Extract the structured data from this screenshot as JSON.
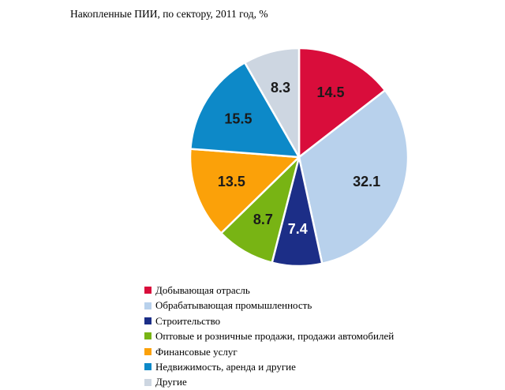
{
  "chart_data": {
    "type": "pie",
    "title": "Накопленные ПИИ, по сектору, 2011 год, %",
    "start": "12 o'clock, clockwise",
    "slices": [
      {
        "label": "Добывающая отрасль",
        "value": 14.5,
        "color": "#d90d3b",
        "text_color": "#1a1a1a"
      },
      {
        "label": "Обрабатывающая промышленность",
        "value": 32.1,
        "color": "#b8d1ec",
        "text_color": "#1a1a1a"
      },
      {
        "label": "Строительство",
        "value": 7.4,
        "color": "#1c2e87",
        "text_color": "#ffffff"
      },
      {
        "label": "Оптовые и розничные продажи, продажи автомобилей",
        "value": 8.7,
        "color": "#78b414",
        "text_color": "#1a1a1a"
      },
      {
        "label": "Финансовые услуг",
        "value": 13.5,
        "color": "#fba109",
        "text_color": "#1a1a1a"
      },
      {
        "label": "Недвижимость, аренда и другие",
        "value": 15.5,
        "color": "#0d89c8",
        "text_color": "#1a1a1a"
      },
      {
        "label": "Другие",
        "value": 8.3,
        "color": "#cdd6e1",
        "text_color": "#1a1a1a"
      }
    ]
  }
}
